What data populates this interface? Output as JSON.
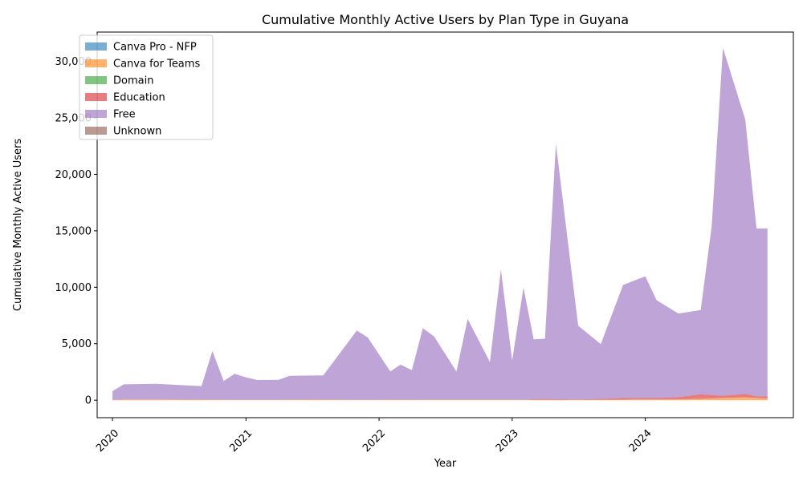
{
  "chart_data": {
    "type": "area",
    "stacked": true,
    "title": "Cumulative Monthly Active Users by Plan Type in Guyana",
    "xlabel": "Year",
    "ylabel": "Cumulative Monthly Active Users",
    "ylim": [
      -1550,
      32600
    ],
    "y_ticks": [
      0,
      5000,
      10000,
      15000,
      20000,
      25000,
      30000
    ],
    "y_tick_labels": [
      "0",
      "5,000",
      "10,000",
      "15,000",
      "20,000",
      "25,000",
      "30,000"
    ],
    "x_ticks": [
      "2020-01-01",
      "2021-01-01",
      "2022-01-01",
      "2023-01-01",
      "2024-01-01"
    ],
    "x_tick_labels": [
      "2020",
      "2021",
      "2022",
      "2023",
      "2024"
    ],
    "xlim": [
      "2019-11-20",
      "2025-02-10"
    ],
    "legend_position": "upper left",
    "x": [
      "2020-01-01",
      "2020-02-01",
      "2020-05-01",
      "2020-09-01",
      "2020-10-01",
      "2020-11-01",
      "2020-12-01",
      "2021-01-01",
      "2021-02-01",
      "2021-04-01",
      "2021-05-01",
      "2021-08-01",
      "2021-11-01",
      "2021-12-01",
      "2022-02-01",
      "2022-03-01",
      "2022-04-01",
      "2022-05-01",
      "2022-06-01",
      "2022-08-01",
      "2022-09-01",
      "2022-11-01",
      "2022-12-01",
      "2023-01-01",
      "2023-02-01",
      "2023-03-01",
      "2023-04-01",
      "2023-05-01",
      "2023-07-01",
      "2023-09-01",
      "2023-11-01",
      "2023-12-01",
      "2024-01-01",
      "2024-02-01",
      "2024-04-01",
      "2024-06-01",
      "2024-07-01",
      "2024-08-01",
      "2024-10-01",
      "2024-11-01",
      "2024-12-01"
    ],
    "series": [
      {
        "name": "Canva Pro - NFP",
        "color": "#1f77b4",
        "values": [
          0,
          0,
          0,
          0,
          0,
          0,
          0,
          0,
          0,
          0,
          0,
          0,
          0,
          0,
          0,
          0,
          0,
          0,
          0,
          0,
          0,
          0,
          0,
          0,
          0,
          0,
          0,
          0,
          0,
          0,
          0,
          0,
          0,
          0,
          0,
          0,
          0,
          0,
          0,
          0,
          0
        ]
      },
      {
        "name": "Canva for Teams",
        "color": "#ff7f0e",
        "values": [
          30,
          60,
          60,
          50,
          40,
          40,
          30,
          30,
          30,
          30,
          40,
          50,
          30,
          30,
          40,
          50,
          30,
          40,
          40,
          40,
          40,
          40,
          40,
          40,
          30,
          40,
          30,
          30,
          30,
          40,
          50,
          60,
          60,
          60,
          70,
          120,
          150,
          200,
          250,
          200,
          150
        ]
      },
      {
        "name": "Domain",
        "color": "#2ca02c",
        "values": [
          0,
          0,
          0,
          0,
          0,
          0,
          0,
          0,
          0,
          0,
          0,
          0,
          0,
          0,
          0,
          0,
          0,
          0,
          0,
          0,
          0,
          0,
          0,
          0,
          0,
          0,
          0,
          0,
          0,
          0,
          0,
          0,
          0,
          0,
          0,
          0,
          0,
          0,
          0,
          0,
          0
        ]
      },
      {
        "name": "Education",
        "color": "#d62728",
        "values": [
          0,
          0,
          0,
          0,
          0,
          0,
          0,
          0,
          0,
          0,
          0,
          0,
          0,
          0,
          0,
          0,
          0,
          0,
          0,
          0,
          0,
          0,
          0,
          0,
          0,
          50,
          80,
          60,
          40,
          80,
          150,
          120,
          150,
          130,
          200,
          400,
          300,
          200,
          300,
          150,
          180
        ]
      },
      {
        "name": "Free",
        "color": "#9467bd",
        "values": [
          770,
          1340,
          1390,
          1180,
          4310,
          1660,
          2310,
          1990,
          1760,
          1770,
          2120,
          2150,
          6140,
          5520,
          2500,
          3100,
          2620,
          6330,
          5600,
          2500,
          7150,
          3340,
          11530,
          3460,
          9940,
          5290,
          5330,
          22610,
          6530,
          4840,
          10000,
          10400,
          10750,
          8660,
          7400,
          7460,
          14950,
          30800,
          24300,
          14850,
          14870
        ]
      },
      {
        "name": "Unknown",
        "color": "#8c564b",
        "values": [
          0,
          0,
          0,
          0,
          0,
          0,
          0,
          0,
          0,
          0,
          0,
          0,
          0,
          0,
          0,
          0,
          0,
          0,
          0,
          0,
          0,
          0,
          0,
          0,
          0,
          0,
          0,
          0,
          0,
          0,
          0,
          0,
          0,
          0,
          0,
          0,
          0,
          0,
          0,
          0,
          0
        ]
      }
    ]
  }
}
